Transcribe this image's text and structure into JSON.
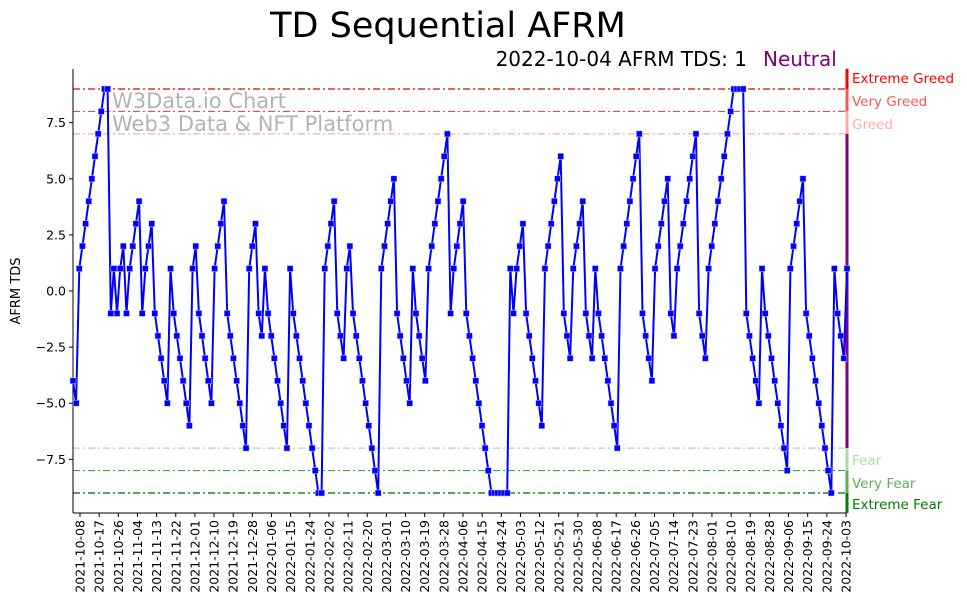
{
  "chart_data": {
    "type": "line",
    "title": "TD Sequential AFRM",
    "subtitle": "2022-10-04 AFRM TDS: 1",
    "status": "Neutral",
    "ylabel": "AFRM TDS",
    "xlabel": "",
    "ylim": [
      -9.9,
      9.9
    ],
    "yticks": [
      -7.5,
      -5.0,
      -2.5,
      0.0,
      2.5,
      5.0,
      7.5
    ],
    "ytick_labels": [
      "−7.5",
      "−5.0",
      "−2.5",
      "0.0",
      "2.5",
      "5.0",
      "7.5"
    ],
    "xtick_labels": [
      "2021-10-08",
      "2021-10-17",
      "2021-10-26",
      "2021-11-04",
      "2021-11-13",
      "2021-11-22",
      "2021-12-01",
      "2021-12-10",
      "2021-12-19",
      "2021-12-28",
      "2022-01-06",
      "2022-01-15",
      "2022-01-24",
      "2022-02-02",
      "2022-02-11",
      "2022-02-20",
      "2022-03-01",
      "2022-03-10",
      "2022-03-19",
      "2022-03-28",
      "2022-04-06",
      "2022-04-15",
      "2022-04-24",
      "2022-05-03",
      "2022-05-12",
      "2022-05-21",
      "2022-05-30",
      "2022-06-08",
      "2022-06-17",
      "2022-06-26",
      "2022-07-05",
      "2022-07-14",
      "2022-07-23",
      "2022-08-01",
      "2022-08-10",
      "2022-08-19",
      "2022-08-28",
      "2022-09-06",
      "2022-09-15",
      "2022-09-24",
      "2022-10-03"
    ],
    "watermark": [
      "W3Data.io Chart",
      "Web3 Data & NFT Platform"
    ],
    "series": [
      {
        "name": "AFRM TDS",
        "color": "#0000ff",
        "values": [
          -4,
          -5,
          1,
          2,
          3,
          4,
          5,
          6,
          7,
          8,
          9,
          9,
          -1,
          1,
          -1,
          1,
          2,
          -1,
          1,
          2,
          3,
          4,
          -1,
          1,
          2,
          3,
          -1,
          -2,
          -3,
          -4,
          -5,
          1,
          -1,
          -2,
          -3,
          -4,
          -5,
          -6,
          1,
          2,
          -1,
          -2,
          -3,
          -4,
          -5,
          1,
          2,
          3,
          4,
          -1,
          -2,
          -3,
          -4,
          -5,
          -6,
          -7,
          1,
          2,
          3,
          -1,
          -2,
          1,
          -1,
          -2,
          -3,
          -4,
          -5,
          -6,
          -7,
          1,
          -1,
          -2,
          -3,
          -4,
          -5,
          -6,
          -7,
          -8,
          -9,
          -9,
          1,
          2,
          3,
          4,
          -1,
          -2,
          -3,
          1,
          2,
          -1,
          -2,
          -3,
          -4,
          -5,
          -6,
          -7,
          -8,
          -9,
          1,
          2,
          3,
          4,
          5,
          -1,
          -2,
          -3,
          -4,
          -5,
          1,
          -1,
          -2,
          -3,
          -4,
          1,
          2,
          3,
          4,
          5,
          6,
          7,
          -1,
          1,
          2,
          3,
          4,
          -1,
          -2,
          -3,
          -4,
          -5,
          -6,
          -7,
          -8,
          -9,
          -9,
          -9,
          -9,
          -9,
          -9,
          1,
          -1,
          1,
          2,
          3,
          -1,
          -2,
          -3,
          -4,
          -5,
          -6,
          1,
          2,
          3,
          4,
          5,
          6,
          -1,
          -2,
          -3,
          1,
          2,
          3,
          4,
          -1,
          -2,
          -3,
          1,
          -1,
          -2,
          -3,
          -4,
          -5,
          -6,
          -7,
          1,
          2,
          3,
          4,
          5,
          6,
          7,
          -1,
          -2,
          -3,
          -4,
          1,
          2,
          3,
          4,
          5,
          -1,
          -2,
          1,
          2,
          3,
          4,
          5,
          6,
          7,
          -1,
          -2,
          -3,
          1,
          2,
          3,
          4,
          5,
          6,
          7,
          8,
          9,
          9,
          9,
          9,
          -1,
          -2,
          -3,
          -4,
          -5,
          1,
          -1,
          -2,
          -3,
          -4,
          -5,
          -6,
          -7,
          -8,
          1,
          2,
          3,
          4,
          5,
          -1,
          -2,
          -3,
          -4,
          -5,
          -6,
          -7,
          -8,
          -9,
          1,
          -1,
          -2,
          -3,
          1
        ]
      }
    ],
    "thresholds": [
      {
        "value": 9,
        "label": "Extreme Greed",
        "color": "#ff0000",
        "line": "#e00000"
      },
      {
        "value": 8,
        "label": "Very Greed",
        "color": "#ff5555",
        "line": "#ff4444"
      },
      {
        "value": 7,
        "label": "Greed",
        "color": "#ffaaaa",
        "line": "#ffaaaa"
      },
      {
        "value": -7,
        "label": "Fear",
        "color": "#a8dca8",
        "line": "#a8dca8"
      },
      {
        "value": -8,
        "label": "Very Fear",
        "color": "#55b555",
        "line": "#44aa44"
      },
      {
        "value": -9,
        "label": "Extreme Fear",
        "color": "#008000",
        "line": "#006600"
      }
    ],
    "neutral_color": "#800080"
  }
}
